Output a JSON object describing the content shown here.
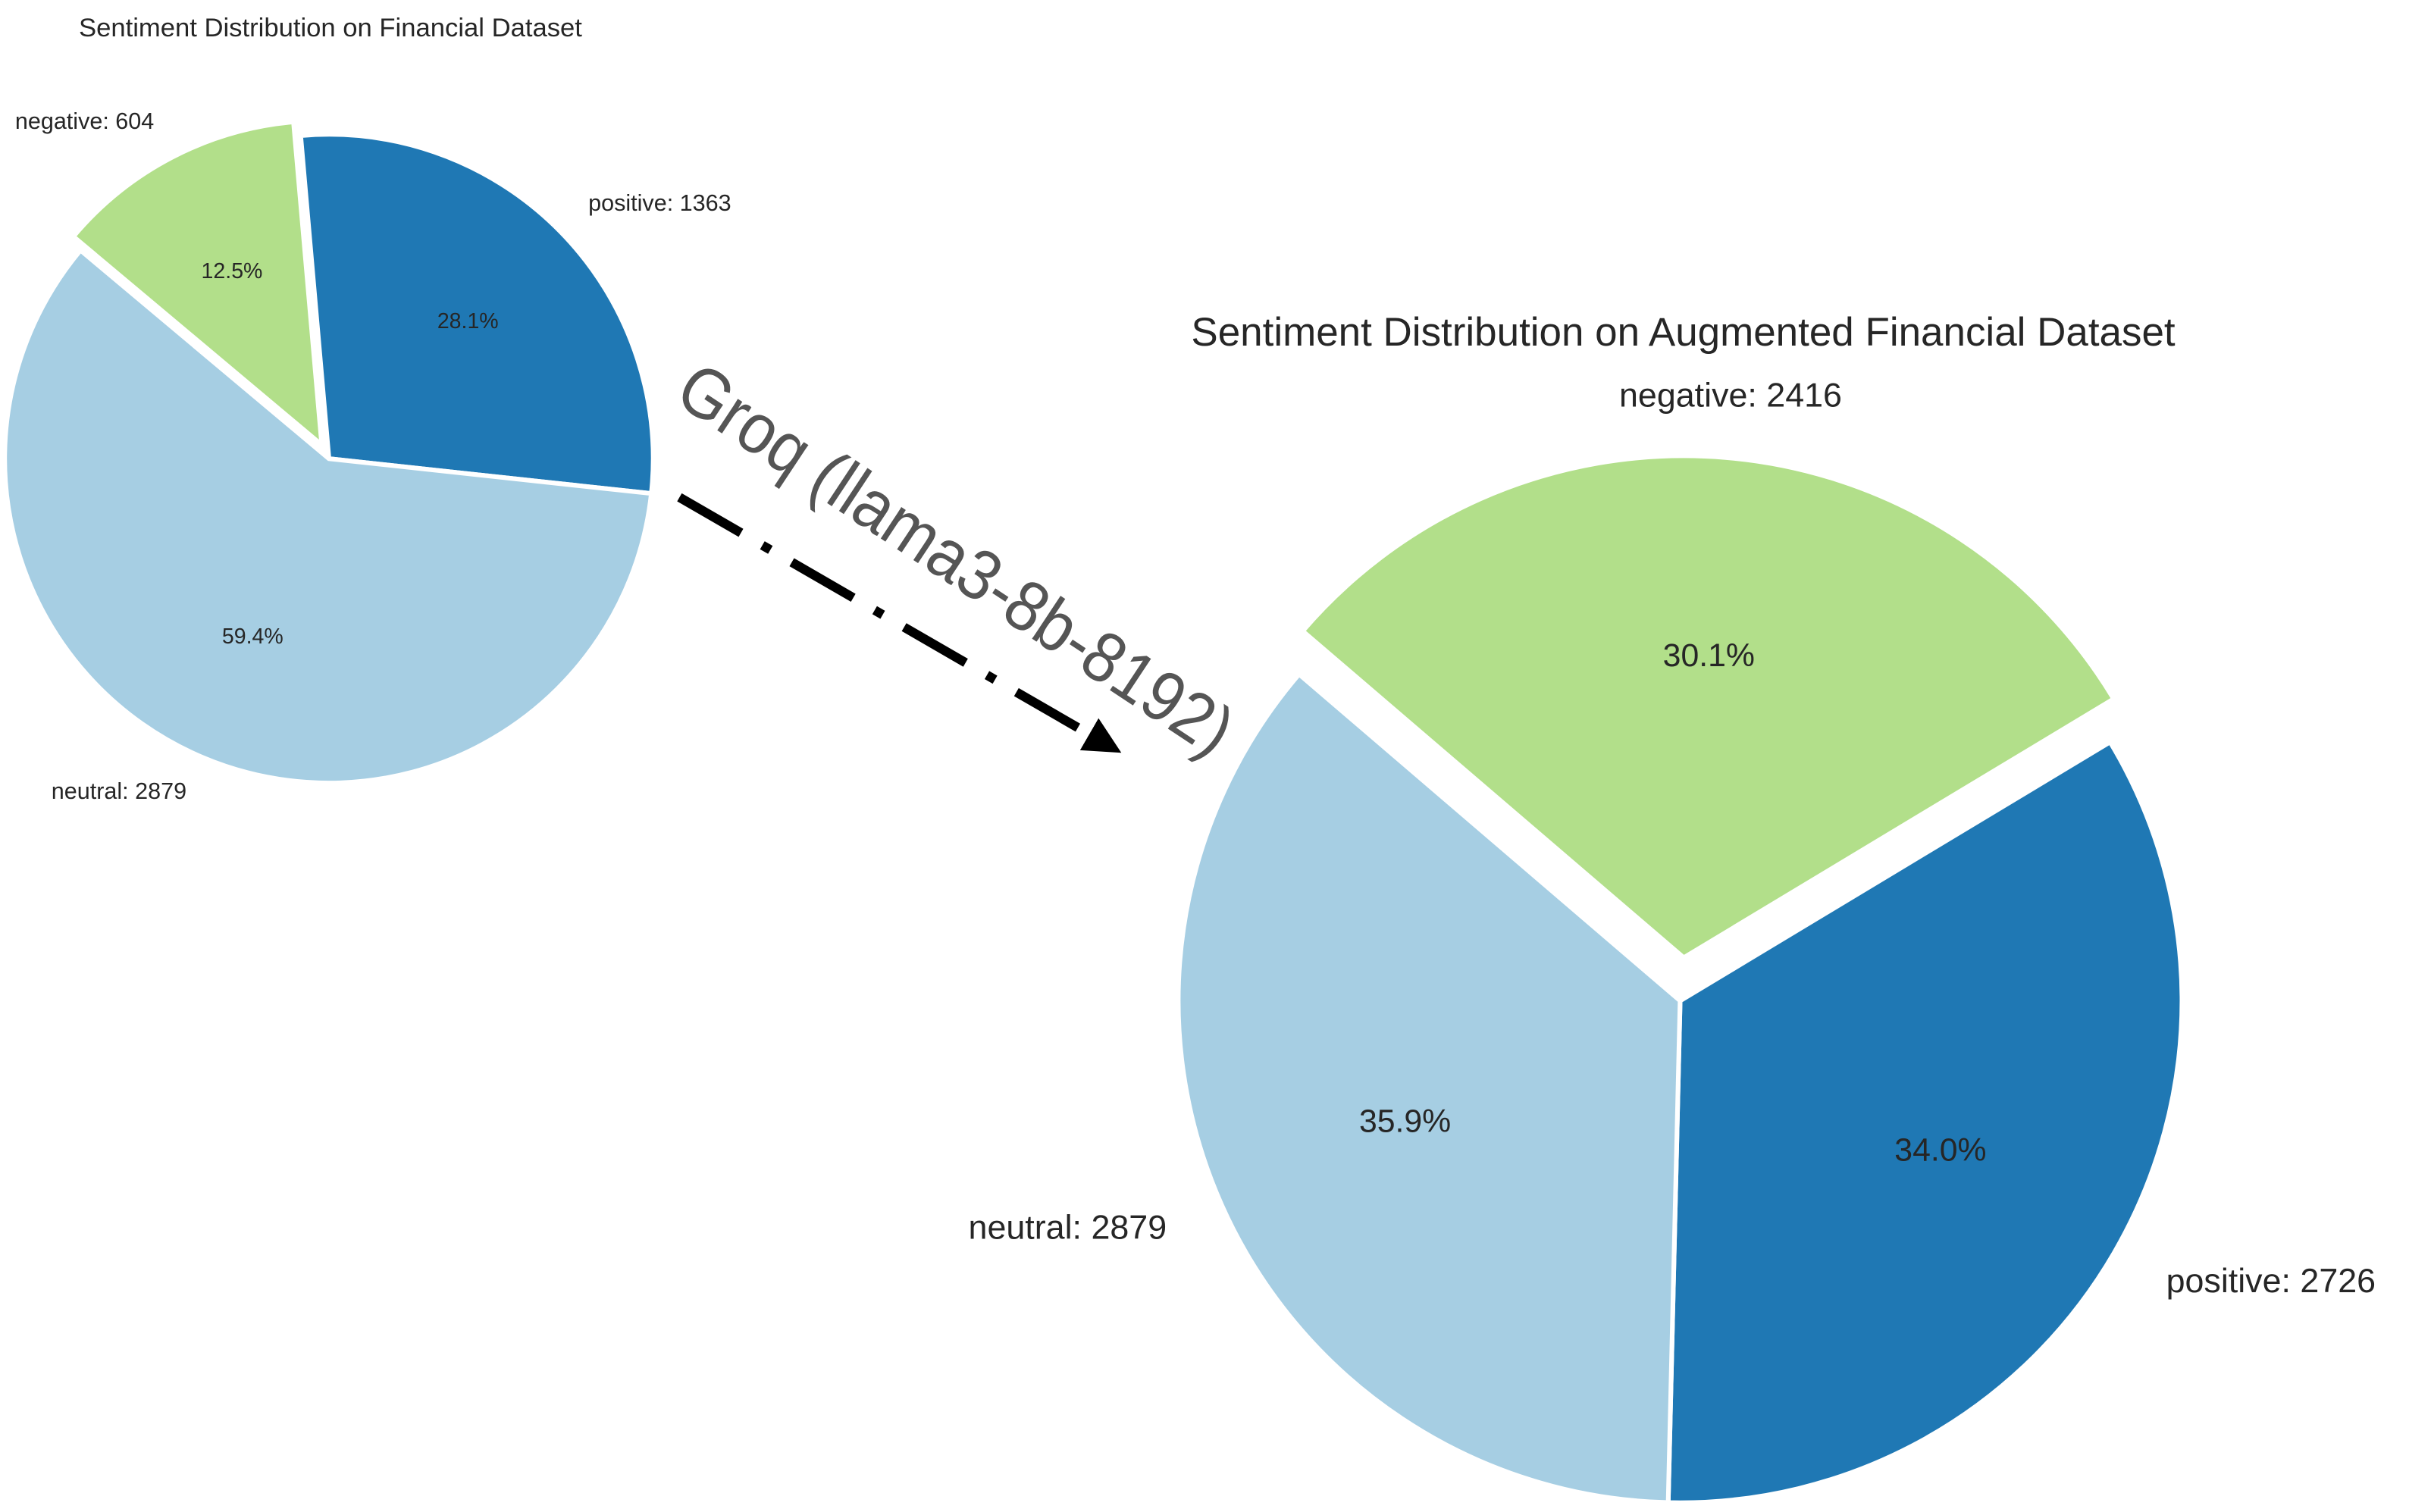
{
  "annotation": "Groq (llama3-8b-8192)",
  "chart_data": [
    {
      "type": "pie",
      "title": "Sentiment Distribution on Financial Dataset",
      "categories": [
        "positive: 1363",
        "neutral: 2879",
        "negative: 604"
      ],
      "values": [
        28.1,
        59.4,
        12.5
      ],
      "value_labels": [
        "28.1%",
        "59.4%",
        "12.5%"
      ],
      "colors": [
        "#1f78b4",
        "#a6cee3",
        "#b2df8a"
      ]
    },
    {
      "type": "pie",
      "title": "Sentiment Distribution on Augmented Financial Dataset",
      "categories": [
        "negative: 2416",
        "positive: 2726",
        "neutral: 2879"
      ],
      "values": [
        30.1,
        34.0,
        35.9
      ],
      "value_labels": [
        "30.1%",
        "34.0%",
        "35.9%"
      ],
      "colors": [
        "#b2df8a",
        "#1f78b4",
        "#a6cee3"
      ]
    }
  ]
}
